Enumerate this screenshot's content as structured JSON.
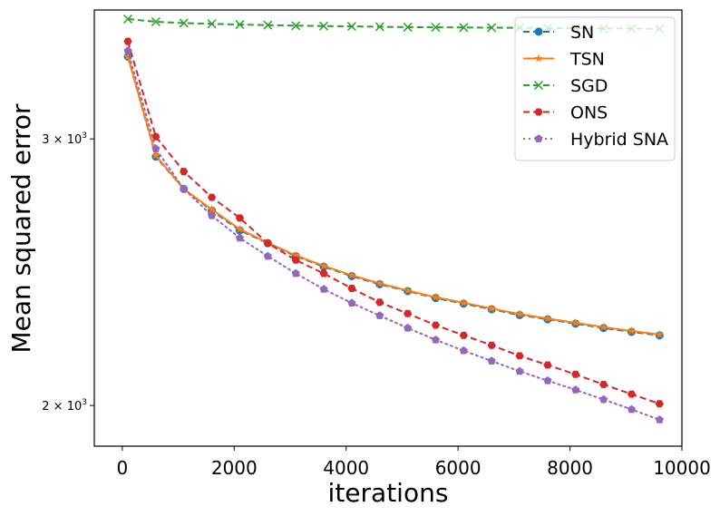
{
  "chart_data": {
    "type": "line",
    "title": "",
    "xlabel": "iterations",
    "ylabel": "Mean squared error",
    "yscale": "log",
    "xlim": [
      -500,
      10000
    ],
    "ylim": [
      1880,
      3650
    ],
    "x_ticks": [
      0,
      2000,
      4000,
      6000,
      8000,
      10000
    ],
    "x_tick_labels": [
      "0",
      "2000",
      "4000",
      "6000",
      "8000",
      "10000"
    ],
    "y_ticks": [
      2000,
      3000
    ],
    "y_tick_labels": [
      {
        "base": "2 × 10",
        "exp": "3"
      },
      {
        "base": "3 × 10",
        "exp": "3"
      }
    ],
    "legend_position": "top-right",
    "x": [
      100,
      600,
      1100,
      1600,
      2100,
      2600,
      3100,
      3600,
      4100,
      4600,
      5100,
      5600,
      6100,
      6600,
      7100,
      7600,
      8100,
      8600,
      9100,
      9600
    ],
    "series": [
      {
        "name": "SN",
        "color": "#1f77b4",
        "dash": "dashed",
        "marker": "circle",
        "values": [
          3400,
          2920,
          2780,
          2690,
          2610,
          2560,
          2510,
          2470,
          2435,
          2405,
          2380,
          2355,
          2335,
          2315,
          2295,
          2280,
          2265,
          2250,
          2237,
          2225
        ]
      },
      {
        "name": "TSN",
        "color": "#ff7f0e",
        "dash": "solid",
        "marker": "star",
        "values": [
          3400,
          2925,
          2780,
          2695,
          2615,
          2562,
          2513,
          2473,
          2438,
          2408,
          2382,
          2358,
          2338,
          2318,
          2298,
          2283,
          2268,
          2253,
          2240,
          2228
        ]
      },
      {
        "name": "SGD",
        "color": "#2ca02c",
        "dash": "dashed",
        "marker": "x",
        "values": [
          3600,
          3585,
          3578,
          3574,
          3570,
          3567,
          3564,
          3562,
          3560,
          3558,
          3556,
          3555,
          3554,
          3553,
          3552,
          3551,
          3550,
          3549,
          3548,
          3547
        ]
      },
      {
        "name": "ONS",
        "color": "#d62728",
        "dash": "dashed",
        "marker": "hexagon",
        "values": [
          3480,
          3010,
          2855,
          2745,
          2660,
          2560,
          2495,
          2445,
          2390,
          2340,
          2300,
          2260,
          2225,
          2192,
          2157,
          2127,
          2097,
          2065,
          2035,
          2005
        ]
      },
      {
        "name": "Hybrid SNA",
        "color": "#9467bd",
        "dash": "dotted",
        "marker": "pentagon",
        "values": [
          3430,
          2955,
          2780,
          2670,
          2580,
          2510,
          2445,
          2387,
          2337,
          2293,
          2250,
          2210,
          2174,
          2140,
          2107,
          2077,
          2048,
          2018,
          1988,
          1957
        ]
      }
    ]
  }
}
